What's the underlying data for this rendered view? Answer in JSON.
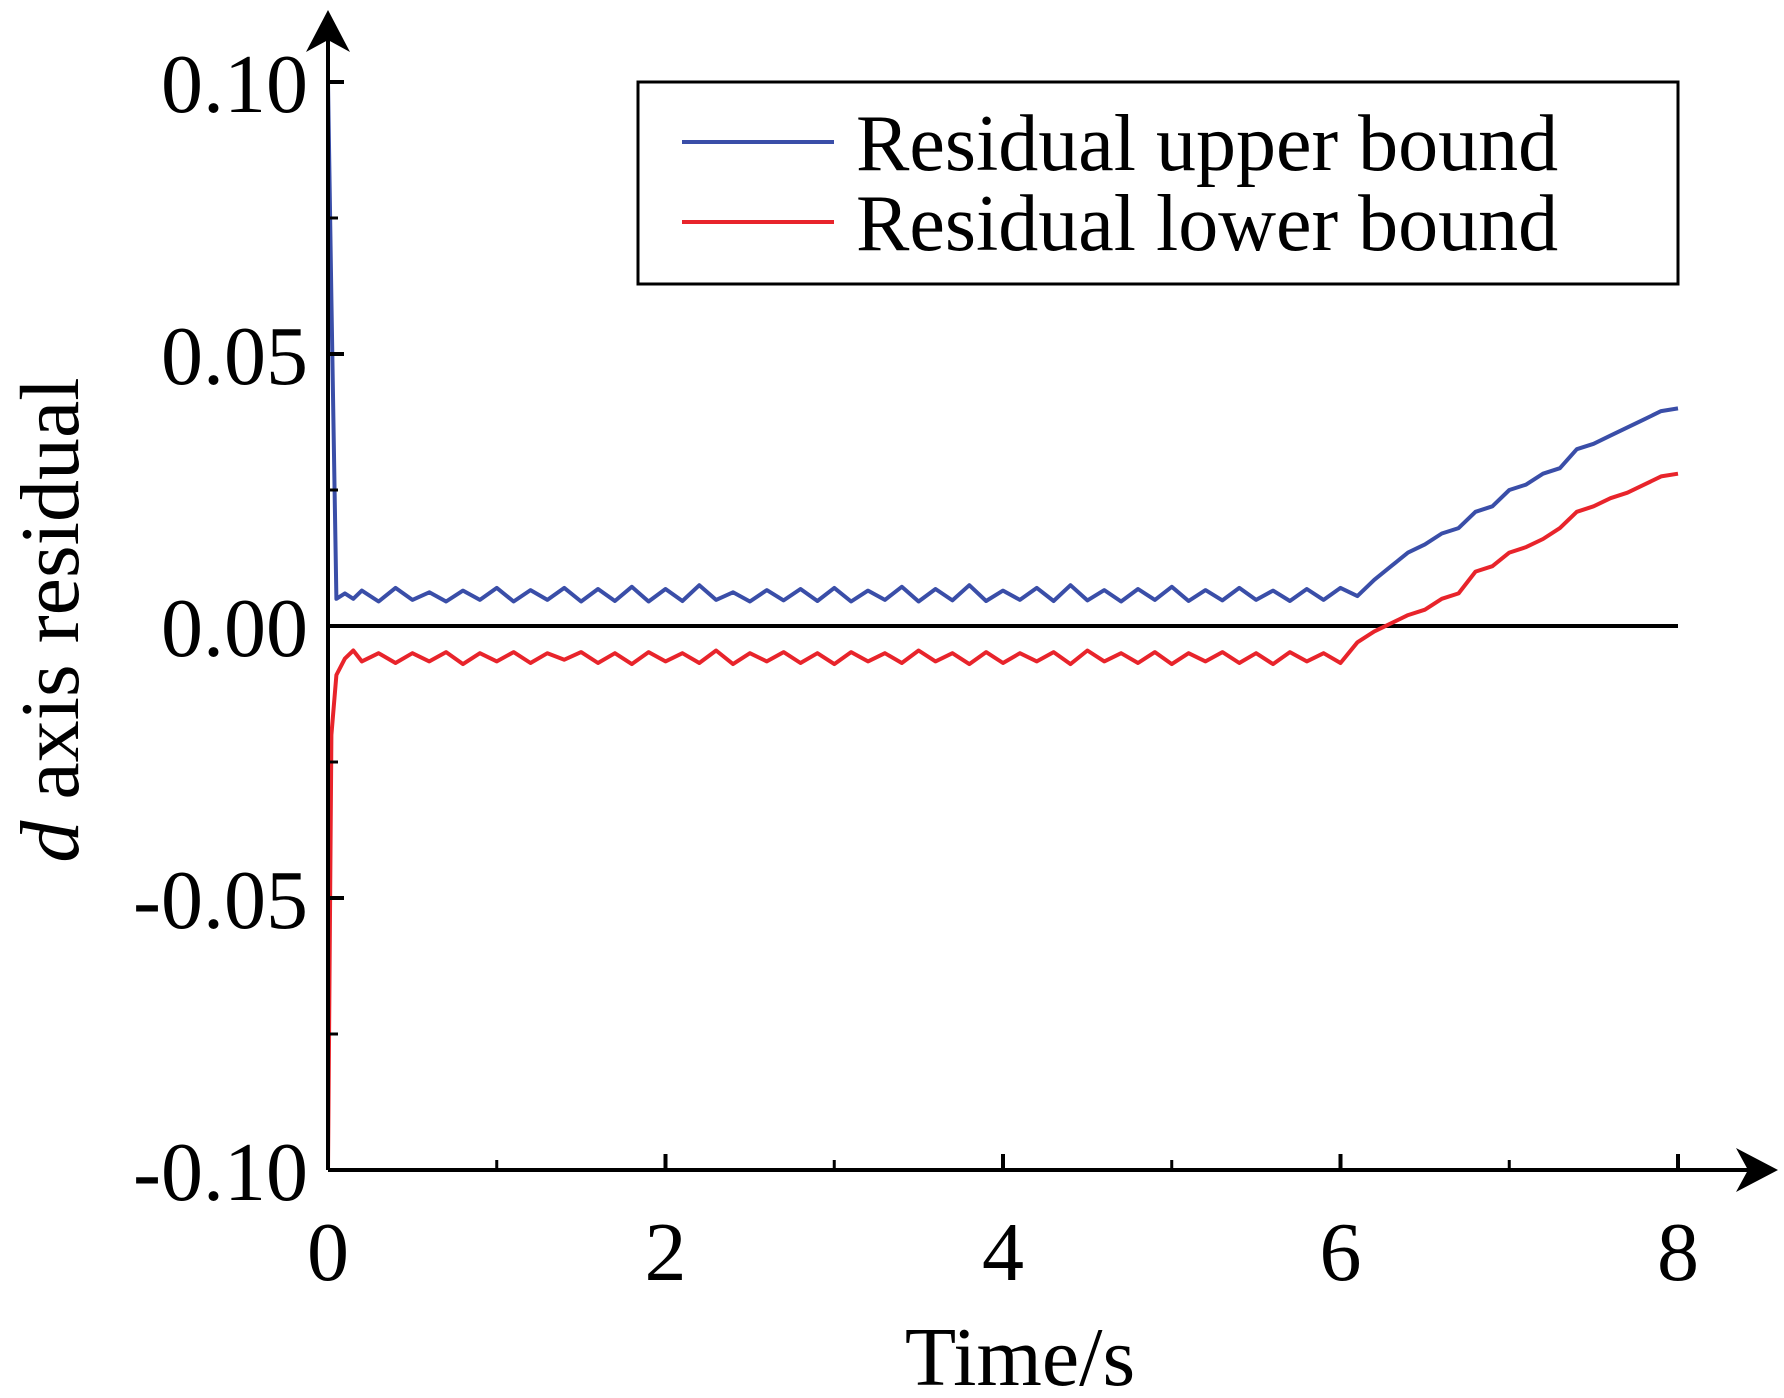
{
  "chart_data": {
    "type": "line",
    "title": "",
    "xlabel": "Time/s",
    "ylabel_italic": "d",
    "ylabel_rest": " axis residual",
    "xlim": [
      0,
      8
    ],
    "ylim": [
      -0.1,
      0.1
    ],
    "x_ticks": [
      0,
      2,
      4,
      6,
      8
    ],
    "x_tick_labels": [
      "0",
      "2",
      "4",
      "6",
      "8"
    ],
    "x_minor_ticks": [
      1,
      3,
      5,
      7
    ],
    "y_ticks": [
      -0.1,
      -0.05,
      0.0,
      0.05,
      0.1
    ],
    "y_tick_labels": [
      "-0.10",
      "-0.05",
      "0.00",
      "0.05",
      "0.10"
    ],
    "y_minor_ticks": [
      -0.075,
      -0.025,
      0.025,
      0.075
    ],
    "grid": false,
    "legend_position": "top-right",
    "reference_line": {
      "y": 0.0,
      "color": "#000000"
    },
    "series": [
      {
        "name": "Residual upper bound",
        "color": "#3a4ea8",
        "x": [
          0.0,
          0.02,
          0.05,
          0.1,
          0.15,
          0.2,
          0.3,
          0.4,
          0.5,
          0.6,
          0.7,
          0.8,
          0.9,
          1.0,
          1.1,
          1.2,
          1.3,
          1.4,
          1.5,
          1.6,
          1.7,
          1.8,
          1.9,
          2.0,
          2.1,
          2.2,
          2.3,
          2.4,
          2.5,
          2.6,
          2.7,
          2.8,
          2.9,
          3.0,
          3.1,
          3.2,
          3.3,
          3.4,
          3.5,
          3.6,
          3.7,
          3.8,
          3.9,
          4.0,
          4.1,
          4.2,
          4.3,
          4.4,
          4.5,
          4.6,
          4.7,
          4.8,
          4.9,
          5.0,
          5.1,
          5.2,
          5.3,
          5.4,
          5.5,
          5.6,
          5.7,
          5.8,
          5.9,
          6.0,
          6.1,
          6.2,
          6.3,
          6.4,
          6.5,
          6.6,
          6.7,
          6.8,
          6.9,
          7.0,
          7.1,
          7.2,
          7.3,
          7.4,
          7.5,
          7.6,
          7.7,
          7.8,
          7.9,
          8.0
        ],
        "values": [
          0.1,
          0.06,
          0.005,
          0.006,
          0.005,
          0.0065,
          0.0045,
          0.007,
          0.0048,
          0.0062,
          0.0045,
          0.0065,
          0.0048,
          0.007,
          0.0045,
          0.0066,
          0.0048,
          0.007,
          0.0045,
          0.0068,
          0.0046,
          0.0072,
          0.0045,
          0.0068,
          0.0046,
          0.0075,
          0.0048,
          0.0062,
          0.0045,
          0.0066,
          0.0047,
          0.0068,
          0.0046,
          0.007,
          0.0045,
          0.0065,
          0.0048,
          0.0072,
          0.0045,
          0.0068,
          0.0047,
          0.0075,
          0.0046,
          0.0065,
          0.0048,
          0.007,
          0.0046,
          0.0075,
          0.0047,
          0.0066,
          0.0045,
          0.0068,
          0.0048,
          0.0072,
          0.0046,
          0.0066,
          0.0047,
          0.007,
          0.0048,
          0.0065,
          0.0046,
          0.0068,
          0.0048,
          0.007,
          0.0055,
          0.0085,
          0.011,
          0.0135,
          0.015,
          0.017,
          0.018,
          0.021,
          0.022,
          0.025,
          0.026,
          0.028,
          0.029,
          0.0325,
          0.0335,
          0.035,
          0.0365,
          0.038,
          0.0395,
          0.04
        ]
      },
      {
        "name": "Residual lower bound",
        "color": "#e8242b",
        "x": [
          0.0,
          0.02,
          0.05,
          0.1,
          0.15,
          0.2,
          0.3,
          0.4,
          0.5,
          0.6,
          0.7,
          0.8,
          0.9,
          1.0,
          1.1,
          1.2,
          1.3,
          1.4,
          1.5,
          1.6,
          1.7,
          1.8,
          1.9,
          2.0,
          2.1,
          2.2,
          2.3,
          2.4,
          2.5,
          2.6,
          2.7,
          2.8,
          2.9,
          3.0,
          3.1,
          3.2,
          3.3,
          3.4,
          3.5,
          3.6,
          3.7,
          3.8,
          3.9,
          4.0,
          4.1,
          4.2,
          4.3,
          4.4,
          4.5,
          4.6,
          4.7,
          4.8,
          4.9,
          5.0,
          5.1,
          5.2,
          5.3,
          5.4,
          5.5,
          5.6,
          5.7,
          5.8,
          5.9,
          6.0,
          6.1,
          6.2,
          6.3,
          6.4,
          6.5,
          6.6,
          6.7,
          6.8,
          6.9,
          7.0,
          7.1,
          7.2,
          7.3,
          7.4,
          7.5,
          7.6,
          7.7,
          7.8,
          7.9,
          8.0
        ],
        "values": [
          -0.1,
          -0.02,
          -0.009,
          -0.006,
          -0.0045,
          -0.0065,
          -0.005,
          -0.0068,
          -0.005,
          -0.0065,
          -0.0048,
          -0.007,
          -0.005,
          -0.0065,
          -0.0048,
          -0.0068,
          -0.005,
          -0.0062,
          -0.0048,
          -0.0068,
          -0.005,
          -0.007,
          -0.0048,
          -0.0065,
          -0.005,
          -0.0068,
          -0.0045,
          -0.007,
          -0.005,
          -0.0065,
          -0.0048,
          -0.0068,
          -0.005,
          -0.007,
          -0.0048,
          -0.0065,
          -0.005,
          -0.0068,
          -0.0045,
          -0.0065,
          -0.005,
          -0.007,
          -0.0048,
          -0.0068,
          -0.005,
          -0.0065,
          -0.0048,
          -0.007,
          -0.0045,
          -0.0065,
          -0.005,
          -0.0068,
          -0.0048,
          -0.007,
          -0.005,
          -0.0065,
          -0.0048,
          -0.0068,
          -0.005,
          -0.007,
          -0.0048,
          -0.0065,
          -0.005,
          -0.0068,
          -0.003,
          -0.001,
          0.0005,
          0.002,
          0.003,
          0.005,
          0.006,
          0.01,
          0.011,
          0.0135,
          0.0145,
          0.016,
          0.018,
          0.021,
          0.022,
          0.0235,
          0.0245,
          0.026,
          0.0275,
          0.028
        ]
      }
    ]
  }
}
